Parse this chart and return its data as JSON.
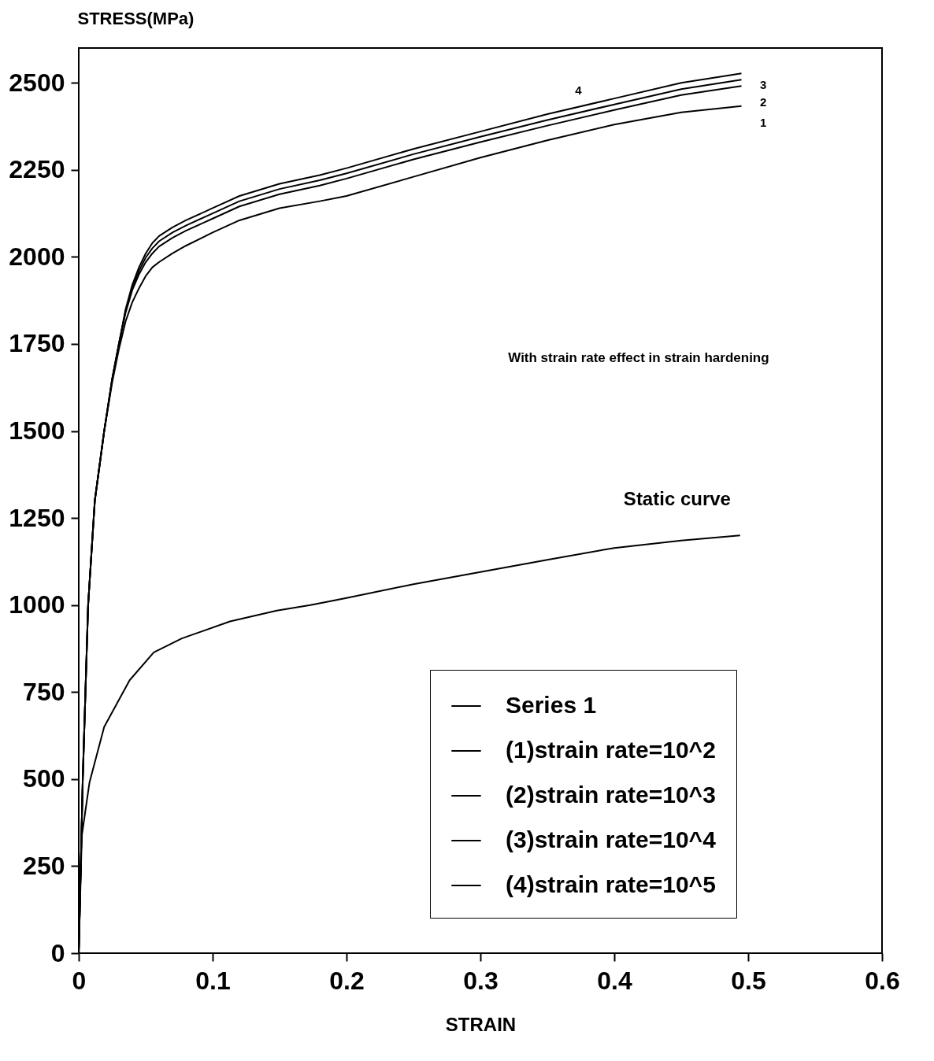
{
  "chart_data": {
    "type": "line",
    "xlabel": "STRAIN",
    "ylabel": "STRESS(MPa)",
    "xlim": [
      0,
      0.6
    ],
    "xticks": [
      0,
      0.1,
      0.2,
      0.3,
      0.4,
      0.5,
      0.6
    ],
    "ylim": [
      0,
      2600
    ],
    "yticks": [
      0,
      250,
      500,
      750,
      1000,
      1250,
      1500,
      1750,
      2000,
      2250,
      2500
    ],
    "grid": false,
    "legend": "bottom right",
    "marker": "none",
    "line_style": "solid",
    "annotations": [
      "With strain rate effect in strain hardening",
      "Static curve",
      "4",
      "3",
      "2",
      "1"
    ],
    "series": [
      {
        "name": "Series 1",
        "color": "#000000",
        "x": [
          0,
          0.0023,
          0.008,
          0.019,
          0.038,
          0.056,
          0.077,
          0.113,
          0.148,
          0.173,
          0.2,
          0.25,
          0.3,
          0.35,
          0.4,
          0.45,
          0.494
        ],
        "values": [
          0,
          338,
          490,
          650,
          784,
          864,
          904,
          953,
          984,
          1000,
          1020,
          1060,
          1095,
          1130,
          1164,
          1185,
          1200
        ]
      },
      {
        "name": "(1)strain rate=10^2",
        "color": "#000000",
        "x": [
          0,
          0.003,
          0.007,
          0.012,
          0.019,
          0.025,
          0.03,
          0.035,
          0.04,
          0.045,
          0.05,
          0.055,
          0.06,
          0.07,
          0.08,
          0.1,
          0.12,
          0.15,
          0.18,
          0.2,
          0.25,
          0.3,
          0.35,
          0.4,
          0.45,
          0.495
        ],
        "values": [
          0,
          500,
          1000,
          1300,
          1500,
          1640,
          1735,
          1815,
          1870,
          1910,
          1945,
          1970,
          1985,
          2010,
          2032,
          2070,
          2105,
          2140,
          2160,
          2175,
          2230,
          2285,
          2335,
          2380,
          2415,
          2433
        ]
      },
      {
        "name": "(2)strain rate=10^3",
        "color": "#000000",
        "x": [
          0,
          0.003,
          0.007,
          0.012,
          0.019,
          0.025,
          0.03,
          0.035,
          0.04,
          0.045,
          0.05,
          0.055,
          0.06,
          0.07,
          0.08,
          0.1,
          0.12,
          0.15,
          0.18,
          0.2,
          0.25,
          0.3,
          0.35,
          0.4,
          0.45,
          0.495
        ],
        "values": [
          0,
          500,
          1000,
          1300,
          1500,
          1650,
          1750,
          1840,
          1905,
          1950,
          1985,
          2010,
          2030,
          2055,
          2075,
          2110,
          2145,
          2180,
          2205,
          2225,
          2280,
          2330,
          2377,
          2422,
          2465,
          2491
        ]
      },
      {
        "name": "(3)strain rate=10^4",
        "color": "#000000",
        "x": [
          0,
          0.003,
          0.007,
          0.012,
          0.019,
          0.025,
          0.03,
          0.035,
          0.04,
          0.045,
          0.05,
          0.055,
          0.06,
          0.07,
          0.08,
          0.1,
          0.12,
          0.15,
          0.18,
          0.2,
          0.25,
          0.3,
          0.35,
          0.4,
          0.45,
          0.495
        ],
        "values": [
          0,
          500,
          1000,
          1300,
          1500,
          1650,
          1750,
          1845,
          1912,
          1960,
          1998,
          2025,
          2045,
          2070,
          2090,
          2125,
          2160,
          2195,
          2220,
          2240,
          2295,
          2345,
          2393,
          2438,
          2482,
          2509
        ]
      },
      {
        "name": "(4)strain rate=10^5",
        "color": "#000000",
        "x": [
          0,
          0.003,
          0.007,
          0.012,
          0.019,
          0.025,
          0.03,
          0.035,
          0.04,
          0.045,
          0.05,
          0.055,
          0.06,
          0.07,
          0.08,
          0.1,
          0.12,
          0.15,
          0.18,
          0.2,
          0.25,
          0.3,
          0.35,
          0.4,
          0.45,
          0.495
        ],
        "values": [
          0,
          500,
          1000,
          1300,
          1500,
          1650,
          1750,
          1850,
          1920,
          1970,
          2010,
          2040,
          2060,
          2085,
          2105,
          2140,
          2175,
          2210,
          2235,
          2255,
          2310,
          2360,
          2410,
          2455,
          2500,
          2527
        ]
      }
    ]
  }
}
